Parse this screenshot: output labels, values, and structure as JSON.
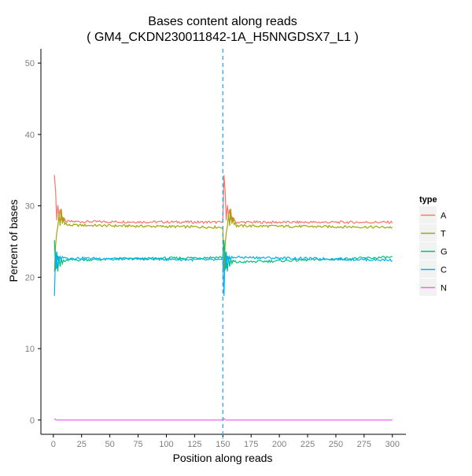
{
  "chart_data": {
    "type": "line",
    "title": "Bases content along reads",
    "subtitle": "( GM4_CKDN230011842-1A_H5NNGDSX7_L1 )",
    "xlabel": "Position along reads",
    "ylabel": "Percent of bases",
    "xlim": [
      -11,
      312
    ],
    "ylim": [
      -2,
      52
    ],
    "x_ticks": [
      0,
      25,
      50,
      75,
      100,
      125,
      150,
      175,
      200,
      225,
      250,
      275,
      300
    ],
    "y_ticks": [
      0,
      10,
      20,
      30,
      40,
      50
    ],
    "grid": false,
    "vline": {
      "x": 150,
      "color": "#3399DD",
      "style": "dashed"
    },
    "legend": {
      "title": "type",
      "position": "right"
    },
    "series": [
      {
        "name": "A",
        "color": "#F8766D",
        "spikes": [
          34.3,
          32.0,
          28.0,
          30.1,
          28.6,
          29.5,
          28.1,
          28.4,
          27.9,
          28.2,
          27.8
        ],
        "settle_start": 27.8,
        "settle_end": 27.7,
        "second_start": 27.7
      },
      {
        "name": "T",
        "color": "#A3A500",
        "spikes": [
          20.8,
          24.5,
          26.2,
          27.1,
          28.8,
          27.2,
          29.6,
          27.5,
          28.4,
          27.4,
          27.6
        ],
        "settle_start": 27.3,
        "settle_end": 27.0,
        "second_start": 27.2
      },
      {
        "name": "G",
        "color": "#00BF7D",
        "spikes": [
          25.2,
          21.0,
          23.6,
          20.8,
          22.9,
          21.5,
          22.6,
          21.9,
          22.4,
          22.2,
          22.3
        ],
        "settle_start": 22.4,
        "settle_end": 22.8,
        "second_start": 22.1
      },
      {
        "name": "C",
        "color": "#00B0F6",
        "spikes": [
          17.4,
          23.5,
          21.2,
          23.0,
          22.1,
          22.9,
          22.5,
          22.9,
          22.7,
          22.8,
          22.7
        ],
        "settle_start": 22.7,
        "settle_end": 22.4,
        "second_start": 22.8
      },
      {
        "name": "N",
        "color": "#E76BF3",
        "spikes": [
          0.2,
          0.05,
          0.0
        ],
        "settle_start": 0.0,
        "settle_end": 0.0,
        "second_start": 0.0
      }
    ],
    "x_range": [
      1,
      300
    ],
    "read_split": 150
  }
}
